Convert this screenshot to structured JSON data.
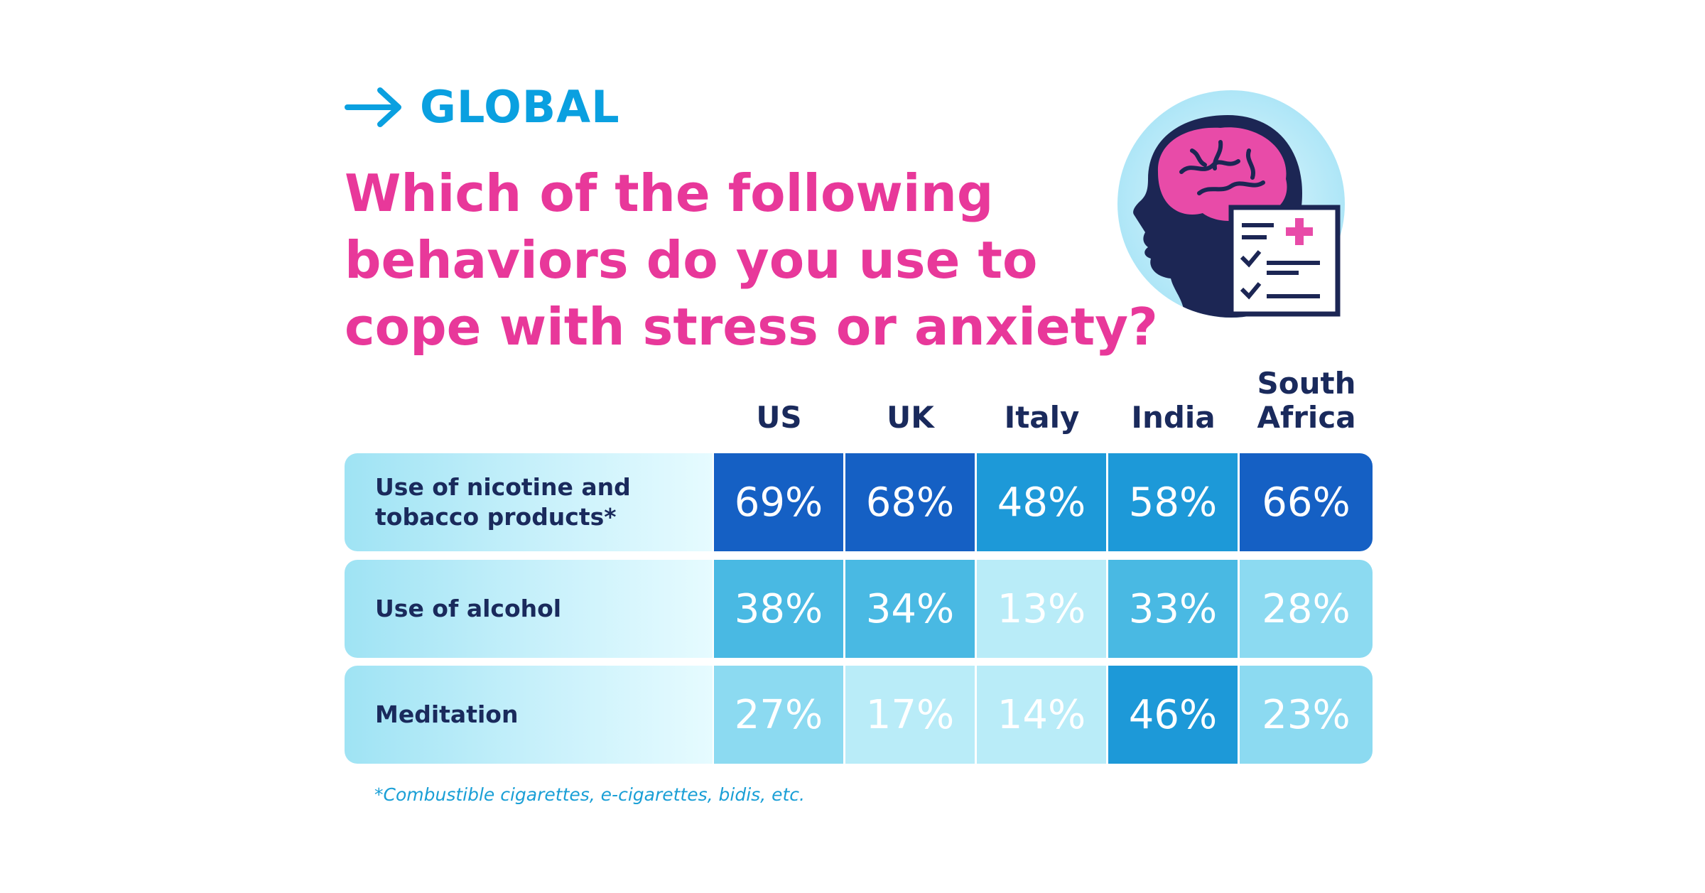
{
  "header": {
    "kicker": "GLOBAL",
    "title_lines": [
      "Which of the following",
      "behaviors do you use to",
      "cope with stress or anxiety?"
    ]
  },
  "illustration": {
    "icon": "head-brain-medical-checklist-icon"
  },
  "colors": {
    "accent": "#0aa0e0",
    "title": "#e8389a",
    "text_dark": "#1a2a5c",
    "scale": [
      "#b9ecf8",
      "#8cdaf1",
      "#49b9e3",
      "#1d99d8",
      "#1777cf",
      "#1560c4"
    ]
  },
  "chart_data": {
    "type": "table",
    "columns": [
      {
        "l1": "US",
        "l2": ""
      },
      {
        "l1": "UK",
        "l2": ""
      },
      {
        "l1": "Italy",
        "l2": ""
      },
      {
        "l1": "India",
        "l2": ""
      },
      {
        "l1": "South",
        "l2": "Africa"
      }
    ],
    "rows": [
      {
        "label_lines": [
          "Use of nicotine and",
          "tobacco products*"
        ],
        "values": [
          69,
          68,
          48,
          58,
          66
        ],
        "display": [
          "69%",
          "68%",
          "48%",
          "58%",
          "66%"
        ]
      },
      {
        "label_lines": [
          "Use of alcohol",
          ""
        ],
        "values": [
          38,
          34,
          13,
          33,
          28
        ],
        "display": [
          "38%",
          "34%",
          "13%",
          "33%",
          "28%"
        ]
      },
      {
        "label_lines": [
          "Meditation",
          ""
        ],
        "values": [
          27,
          17,
          14,
          46,
          23
        ],
        "display": [
          "27%",
          "17%",
          "14%",
          "46%",
          "23%"
        ]
      }
    ],
    "unit": "%"
  },
  "footnote": "*Combustible cigarettes, e-cigarettes, bidis, etc."
}
